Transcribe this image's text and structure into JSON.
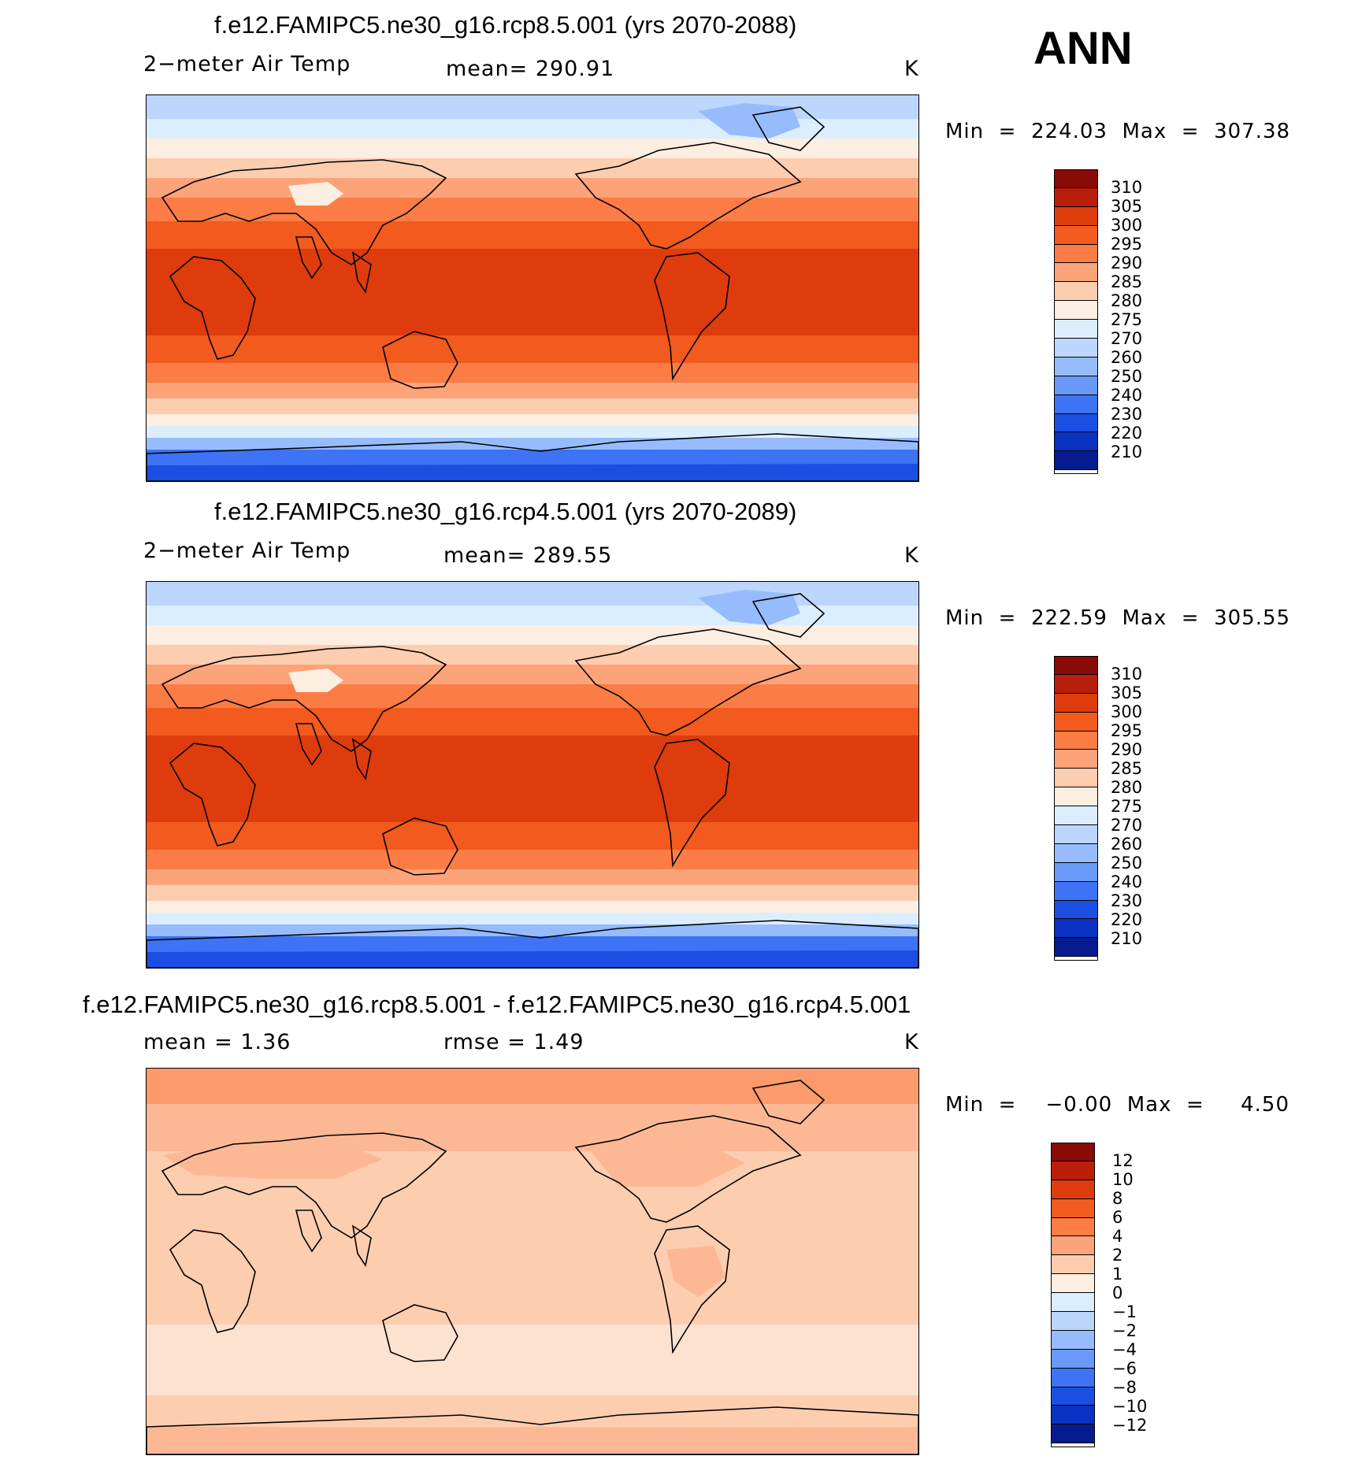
{
  "season": "ANN",
  "panels": [
    {
      "title": "f.e12.FAMIPC5.ne30_g16.rcp8.5.001 (yrs 2070-2088)",
      "variable": "2−meter Air Temp",
      "mean_label": "mean=  290.91",
      "units": "K",
      "minmax": "Min  =  224.03  Max  =  307.38",
      "colorbar_ticks": [
        "310",
        "305",
        "300",
        "295",
        "290",
        "285",
        "280",
        "275",
        "270",
        "260",
        "250",
        "240",
        "230",
        "220",
        "210"
      ],
      "colors": [
        "#8a0a05",
        "#b91e0a",
        "#de3c0d",
        "#f25a1e",
        "#fb7d45",
        "#fca37a",
        "#fdcdb0",
        "#fdeee2",
        "#dbeefd",
        "#bcd6fd",
        "#96bcfd",
        "#6b99fa",
        "#3d73f4",
        "#1a4fe2",
        "#0a31c2",
        "#061b8f"
      ]
    },
    {
      "title": "f.e12.FAMIPC5.ne30_g16.rcp4.5.001 (yrs 2070-2089)",
      "variable": "2−meter Air Temp",
      "mean_label": "mean=  289.55",
      "units": "K",
      "minmax": "Min  =  222.59  Max  =  305.55",
      "colorbar_ticks": [
        "310",
        "305",
        "300",
        "295",
        "290",
        "285",
        "280",
        "275",
        "270",
        "260",
        "250",
        "240",
        "230",
        "220",
        "210"
      ],
      "colors": [
        "#8a0a05",
        "#b91e0a",
        "#de3c0d",
        "#f25a1e",
        "#fb7d45",
        "#fca37a",
        "#fdcdb0",
        "#fdeee2",
        "#dbeefd",
        "#bcd6fd",
        "#96bcfd",
        "#6b99fa",
        "#3d73f4",
        "#1a4fe2",
        "#0a31c2",
        "#061b8f"
      ]
    },
    {
      "title": "f.e12.FAMIPC5.ne30_g16.rcp8.5.001 - f.e12.FAMIPC5.ne30_g16.rcp4.5.001",
      "mean_label": "mean  =     1.36",
      "rmse_label": "rmse  =     1.49",
      "units": "K",
      "minmax": "Min  =    −0.00  Max  =     4.50",
      "colorbar_ticks": [
        "12",
        "10",
        "8",
        "6",
        "4",
        "2",
        "1",
        "0",
        "−1",
        "−2",
        "−4",
        "−6",
        "−8",
        "−10",
        "−12"
      ],
      "colors": [
        "#8a0a05",
        "#b91e0a",
        "#de3c0d",
        "#f25a1e",
        "#fb7d45",
        "#fca37a",
        "#fdcdb0",
        "#fdeee2",
        "#dbeefd",
        "#bcd6fd",
        "#96bcfd",
        "#6b99fa",
        "#3d73f4",
        "#1a4fe2",
        "#0a31c2",
        "#061b8f"
      ]
    }
  ]
}
